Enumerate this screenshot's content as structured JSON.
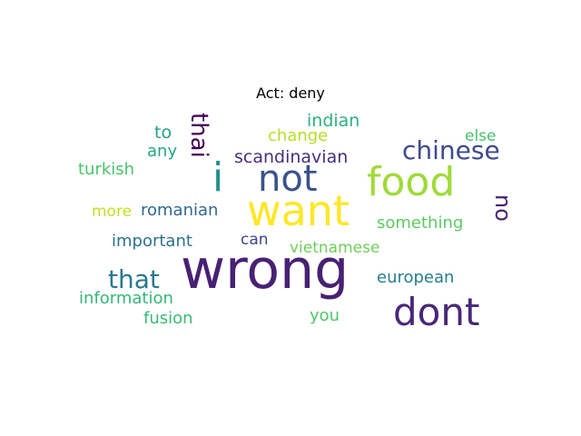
{
  "title": "Act: deny",
  "words": [
    {
      "text": "wrong",
      "color": "#482173"
    },
    {
      "text": "want",
      "color": "#fde725"
    },
    {
      "text": "dont",
      "color": "#482878"
    },
    {
      "text": "food",
      "color": "#a0da39"
    },
    {
      "text": "not",
      "color": "#3b528b"
    },
    {
      "text": "i",
      "color": "#21918c"
    },
    {
      "text": "that",
      "color": "#2a788e"
    },
    {
      "text": "chinese",
      "color": "#3e4989"
    },
    {
      "text": "thai",
      "color": "#440154"
    },
    {
      "text": "no",
      "color": "#482475"
    },
    {
      "text": "scandinavian",
      "color": "#472f7d"
    },
    {
      "text": "indian",
      "color": "#2db27d"
    },
    {
      "text": "change",
      "color": "#b5de2b"
    },
    {
      "text": "romanian",
      "color": "#31688e"
    },
    {
      "text": "important",
      "color": "#2c728e"
    },
    {
      "text": "something",
      "color": "#5ec962"
    },
    {
      "text": "vietnamese",
      "color": "#6ece58"
    },
    {
      "text": "european",
      "color": "#287d8e"
    },
    {
      "text": "information",
      "color": "#35b779"
    },
    {
      "text": "fusion",
      "color": "#3aba76"
    },
    {
      "text": "turkish",
      "color": "#4ac16d"
    },
    {
      "text": "can",
      "color": "#3f4788"
    },
    {
      "text": "you",
      "color": "#52c569"
    },
    {
      "text": "else",
      "color": "#4ac16d"
    },
    {
      "text": "to",
      "color": "#1fa187"
    },
    {
      "text": "any",
      "color": "#22a884"
    },
    {
      "text": "more",
      "color": "#c2df23"
    }
  ]
}
